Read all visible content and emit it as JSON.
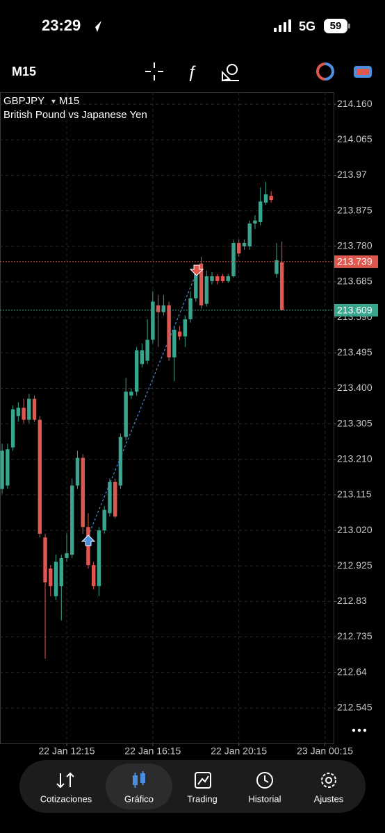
{
  "status_bar": {
    "time": "23:29",
    "network": "5G",
    "battery": "59"
  },
  "toolbar": {
    "timeframe": "M15"
  },
  "chart_data": {
    "type": "candlestick",
    "symbol": "GBPJPY",
    "timeframe": "M15",
    "subtitle": "British Pound vs Japanese Yen",
    "open": [
      213.131,
      213.14,
      213.242,
      213.326,
      213.348,
      213.316,
      213.372,
      213.316,
      213.001,
      212.918,
      212.844,
      212.871,
      212.946,
      212.955,
      213.14,
      213.214,
      213.029,
      212.927,
      212.871,
      213.02,
      213.066,
      213.15,
      213.14,
      213.27,
      213.381,
      213.391,
      213.465,
      213.474,
      213.53,
      213.622,
      213.604,
      213.622,
      213.483,
      213.552,
      213.539,
      213.585,
      213.641,
      213.734,
      213.626,
      213.687,
      213.7,
      213.7,
      213.687,
      213.7,
      213.789,
      213.78,
      213.78,
      213.841,
      213.845,
      213.897,
      213.915,
      213.706,
      213.737
    ],
    "high": [
      213.252,
      213.252,
      213.354,
      213.363,
      213.372,
      213.385,
      213.381,
      213.326,
      213.011,
      212.927,
      212.955,
      212.955,
      213.011,
      213.159,
      213.233,
      213.224,
      213.066,
      212.936,
      213.029,
      213.085,
      213.159,
      213.159,
      213.279,
      213.428,
      213.4,
      213.511,
      213.52,
      213.585,
      213.66,
      213.65,
      213.65,
      213.632,
      213.567,
      213.567,
      213.595,
      213.66,
      213.724,
      213.752,
      213.715,
      213.711,
      213.706,
      213.706,
      213.706,
      213.798,
      213.798,
      213.798,
      213.849,
      213.863,
      213.937,
      213.952,
      213.928,
      213.789,
      213.793
    ],
    "low": [
      213.118,
      213.131,
      213.233,
      213.311,
      213.307,
      213.307,
      213.311,
      213.001,
      212.677,
      212.844,
      212.834,
      212.779,
      212.936,
      212.946,
      213.131,
      213.011,
      212.918,
      212.862,
      212.844,
      213.011,
      213.057,
      213.052,
      213.131,
      213.261,
      213.372,
      213.381,
      213.456,
      213.465,
      213.52,
      213.511,
      213.595,
      213.474,
      213.419,
      213.53,
      213.511,
      213.576,
      213.632,
      213.613,
      213.619,
      213.678,
      213.678,
      213.682,
      213.682,
      213.696,
      213.752,
      213.771,
      213.771,
      213.826,
      213.836,
      213.891,
      213.897,
      213.696,
      213.609
    ],
    "close": [
      213.233,
      213.237,
      213.344,
      213.348,
      213.316,
      213.372,
      213.316,
      213.011,
      212.881,
      212.871,
      212.936,
      212.946,
      212.959,
      213.14,
      213.214,
      213.029,
      212.927,
      212.871,
      213.02,
      213.075,
      213.15,
      213.057,
      213.27,
      213.391,
      213.391,
      213.502,
      213.502,
      213.53,
      213.632,
      213.604,
      213.622,
      213.483,
      213.557,
      213.539,
      213.585,
      213.641,
      213.715,
      213.622,
      213.7,
      213.7,
      213.687,
      213.687,
      213.7,
      213.789,
      213.761,
      213.789,
      213.841,
      213.849,
      213.9,
      213.919,
      213.904,
      213.743,
      213.609
    ],
    "up_color": "#3aa58e",
    "down_color": "#e0574f",
    "xlim": [
      -0.4,
      61.6
    ],
    "xticks": [
      {
        "value": 12,
        "label": "22 Jan 12:15"
      },
      {
        "value": 28,
        "label": "22 Jan 16:15"
      },
      {
        "value": 44,
        "label": "22 Jan 20:15"
      },
      {
        "value": 60,
        "label": "23 Jan 00:15"
      }
    ],
    "ylim": [
      212.45,
      214.192
    ],
    "yticks": [
      {
        "value": 214.16,
        "label": "214.160"
      },
      214.065,
      213.97,
      213.875,
      {
        "value": 213.78,
        "label": "213.780"
      },
      213.685,
      {
        "value": 213.59,
        "label": "213.590"
      },
      213.495,
      {
        "value": 213.4,
        "label": "213.400"
      },
      213.305,
      {
        "value": 213.21,
        "label": "213.210"
      },
      213.115,
      {
        "value": 213.02,
        "label": "213.020"
      },
      212.925,
      212.83,
      212.735,
      212.64,
      212.545
    ],
    "grid": true,
    "price_lines": [
      {
        "value": 213.739,
        "color": "#e0574f"
      },
      {
        "value": 213.609,
        "color": "#3aa58e"
      }
    ]
  },
  "nav": {
    "items": [
      "Cotizaciones",
      "Gráfico",
      "Trading",
      "Historial",
      "Ajustes"
    ],
    "selected": 1
  }
}
